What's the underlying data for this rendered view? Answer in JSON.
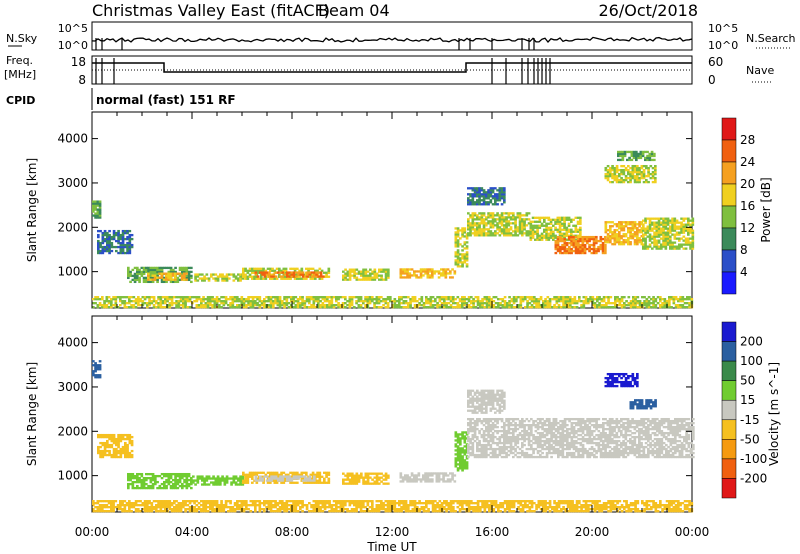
{
  "header": {
    "title": "Christmas Valley East (fitACF)",
    "beam": "Beam 04",
    "date": "26/Oct/2018"
  },
  "noise_panel": {
    "left_label": "N.Sky",
    "right_label": "N.Search",
    "left_ticks": [
      "10^5",
      "10^0"
    ],
    "right_ticks": [
      "10^5",
      "10^0"
    ]
  },
  "freq_panel": {
    "left_label_1": "Freq.",
    "left_label_2": "[MHz]",
    "right_label": "Nave",
    "left_ticks": [
      "18",
      "8"
    ],
    "right_ticks": [
      "60",
      "0"
    ]
  },
  "cpid": {
    "label": "CPID",
    "value": "normal (fast) 151 RF"
  },
  "time_axis": {
    "label": "Time UT",
    "ticks": [
      "00:00",
      "04:00",
      "08:00",
      "12:00",
      "16:00",
      "20:00",
      "00:00"
    ]
  },
  "chart_data": [
    {
      "type": "heatmap",
      "quantity": "Power",
      "ylabel": "Slant Range [km]",
      "xlabel": "",
      "x_range_hours": [
        0,
        24
      ],
      "ylim": [
        180,
        4600
      ],
      "yticks": [
        1000,
        2000,
        3000,
        4000
      ],
      "colorbar": {
        "label": "Power [dB]",
        "ticks": [
          "4",
          "8",
          "12",
          "16",
          "20",
          "24",
          "28"
        ],
        "levels": [
          0,
          4,
          8,
          12,
          16,
          20,
          24,
          28,
          32
        ],
        "colors": [
          "#1a1aff",
          "#2b4fc8",
          "#3b8a5a",
          "#7fbf3f",
          "#f0d020",
          "#f5a020",
          "#f06010",
          "#e01818"
        ]
      },
      "regions": [
        {
          "t0": 0.0,
          "t1": 0.3,
          "r0": 2200,
          "r1": 2600,
          "level": 12
        },
        {
          "t0": 0.2,
          "t1": 1.6,
          "r0": 1400,
          "r1": 1900,
          "level": 8
        },
        {
          "t0": 1.4,
          "t1": 4.0,
          "r0": 750,
          "r1": 1100,
          "level": 12
        },
        {
          "t0": 2.2,
          "t1": 3.8,
          "r0": 800,
          "r1": 950,
          "level": 20
        },
        {
          "t0": 4.0,
          "t1": 6.0,
          "r0": 780,
          "r1": 950,
          "level": 16
        },
        {
          "t0": 6.0,
          "t1": 9.5,
          "r0": 820,
          "r1": 1050,
          "level": 16
        },
        {
          "t0": 6.5,
          "t1": 9.2,
          "r0": 870,
          "r1": 980,
          "level": 24
        },
        {
          "t0": 10.0,
          "t1": 11.8,
          "r0": 800,
          "r1": 1050,
          "level": 16
        },
        {
          "t0": 12.3,
          "t1": 14.5,
          "r0": 850,
          "r1": 1050,
          "level": 20
        },
        {
          "t0": 14.5,
          "t1": 15.0,
          "r0": 1100,
          "r1": 2000,
          "level": 16
        },
        {
          "t0": 15.0,
          "t1": 17.5,
          "r0": 1800,
          "r1": 2300,
          "level": 16
        },
        {
          "t0": 17.5,
          "t1": 19.5,
          "r0": 1700,
          "r1": 2200,
          "level": 16
        },
        {
          "t0": 18.5,
          "t1": 20.5,
          "r0": 1400,
          "r1": 1800,
          "level": 24
        },
        {
          "t0": 20.5,
          "t1": 22.0,
          "r0": 1600,
          "r1": 2100,
          "level": 20
        },
        {
          "t0": 22.0,
          "t1": 24.0,
          "r0": 1500,
          "r1": 2200,
          "level": 16
        },
        {
          "t0": 20.5,
          "t1": 22.5,
          "r0": 3000,
          "r1": 3400,
          "level": 16
        },
        {
          "t0": 21.0,
          "t1": 22.5,
          "r0": 3500,
          "r1": 3700,
          "level": 12
        },
        {
          "t0": 15.0,
          "t1": 16.5,
          "r0": 2500,
          "r1": 2900,
          "level": 8
        },
        {
          "t0": 0.0,
          "t1": 24.0,
          "r0": 180,
          "r1": 450,
          "level": 16
        }
      ]
    },
    {
      "type": "heatmap",
      "quantity": "Velocity",
      "ylabel": "Slant Range [km]",
      "xlabel": "Time UT",
      "x_range_hours": [
        0,
        24
      ],
      "ylim": [
        180,
        4600
      ],
      "yticks": [
        1000,
        2000,
        3000,
        4000
      ],
      "colorbar": {
        "label": "Velocity [m s^-1]",
        "ticks": [
          "200",
          "100",
          "50",
          "15",
          "-15",
          "-50",
          "-100",
          "-200"
        ],
        "levels": [
          250,
          200,
          100,
          50,
          15,
          -15,
          -50,
          -100,
          -200,
          -250
        ],
        "colors": [
          "#1a1ad0",
          "#2a5fa0",
          "#3a8a4a",
          "#70cc30",
          "#c8c8c0",
          "#f5c020",
          "#f59a10",
          "#f06010",
          "#e01818"
        ]
      },
      "regions": [
        {
          "t0": 0.0,
          "t1": 0.3,
          "r0": 3200,
          "r1": 3600,
          "level": 150
        },
        {
          "t0": 0.2,
          "t1": 1.6,
          "r0": 1400,
          "r1": 1900,
          "level": -30
        },
        {
          "t0": 1.4,
          "t1": 4.0,
          "r0": 700,
          "r1": 1050,
          "level": 30
        },
        {
          "t0": 4.0,
          "t1": 6.0,
          "r0": 780,
          "r1": 1000,
          "level": 30
        },
        {
          "t0": 6.0,
          "t1": 9.5,
          "r0": 820,
          "r1": 1050,
          "level": -30
        },
        {
          "t0": 6.5,
          "t1": 9.0,
          "r0": 870,
          "r1": 980,
          "level": 0
        },
        {
          "t0": 10.0,
          "t1": 11.8,
          "r0": 800,
          "r1": 1050,
          "level": -30
        },
        {
          "t0": 12.3,
          "t1": 14.5,
          "r0": 850,
          "r1": 1050,
          "level": 0
        },
        {
          "t0": 14.5,
          "t1": 15.0,
          "r0": 1100,
          "r1": 2000,
          "level": 30
        },
        {
          "t0": 15.0,
          "t1": 24.0,
          "r0": 1400,
          "r1": 2300,
          "level": 0
        },
        {
          "t0": 20.5,
          "t1": 21.8,
          "r0": 3000,
          "r1": 3300,
          "level": 220
        },
        {
          "t0": 21.5,
          "t1": 22.5,
          "r0": 2500,
          "r1": 2700,
          "level": 150
        },
        {
          "t0": 0.0,
          "t1": 24.0,
          "r0": 180,
          "r1": 450,
          "level": -30
        },
        {
          "t0": 15.0,
          "t1": 16.5,
          "r0": 2400,
          "r1": 2900,
          "level": 0
        }
      ]
    }
  ]
}
